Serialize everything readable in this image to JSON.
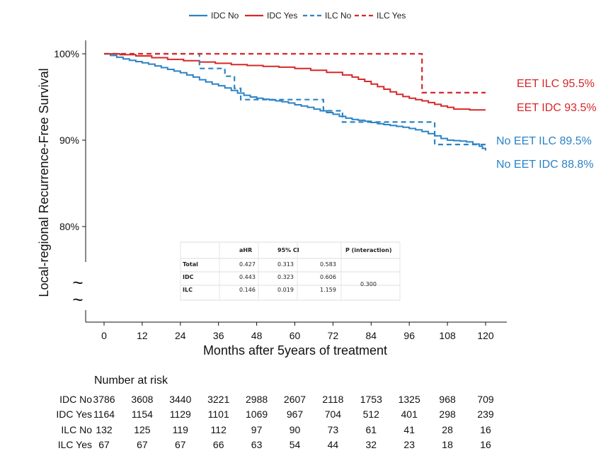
{
  "chart_data": {
    "type": "line",
    "subtype": "kaplan-meier",
    "xlabel": "Months after 5years of treatment",
    "ylabel": "Local-regional Recurrence-Free Survival",
    "x_ticks": [
      0,
      12,
      24,
      36,
      48,
      60,
      72,
      84,
      96,
      108,
      120
    ],
    "y_ticks": [
      {
        "value": 100,
        "label": "100%"
      },
      {
        "value": 90,
        "label": "90%"
      },
      {
        "value": 80,
        "label": "80%"
      }
    ],
    "xlim": [
      -6,
      126
    ],
    "ylim": [
      70,
      101.5
    ],
    "y_axis_break": true,
    "break_symbol": "~",
    "grid": false,
    "legend_position": "top-center",
    "series": [
      {
        "name": "IDC No",
        "color": "#2b83c6",
        "dash": "solid",
        "x": [
          0,
          2,
          4,
          6,
          8,
          10,
          12,
          14,
          16,
          18,
          20,
          22,
          24,
          26,
          28,
          30,
          32,
          34,
          36,
          38,
          40,
          42,
          44,
          46,
          48,
          50,
          52,
          54,
          56,
          58,
          60,
          62,
          64,
          66,
          68,
          70,
          72,
          74,
          76,
          78,
          80,
          82,
          84,
          86,
          88,
          90,
          92,
          94,
          96,
          98,
          100,
          102,
          104,
          106,
          108,
          110,
          112,
          114,
          116,
          118,
          119,
          120
        ],
        "y": [
          100,
          99.8,
          99.6,
          99.4,
          99.25,
          99.1,
          98.95,
          98.8,
          98.6,
          98.4,
          98.2,
          98.0,
          97.8,
          97.55,
          97.3,
          97.0,
          96.75,
          96.5,
          96.3,
          96.05,
          95.75,
          95.45,
          95.2,
          95.0,
          94.85,
          94.75,
          94.65,
          94.55,
          94.45,
          94.3,
          94.1,
          93.95,
          93.8,
          93.6,
          93.4,
          93.2,
          93.0,
          92.75,
          92.55,
          92.4,
          92.3,
          92.2,
          92.05,
          91.9,
          91.8,
          91.7,
          91.6,
          91.5,
          91.35,
          91.2,
          91.0,
          90.75,
          90.5,
          90.2,
          90.0,
          89.95,
          89.9,
          89.8,
          89.55,
          89.3,
          89.05,
          88.8
        ]
      },
      {
        "name": "IDC Yes",
        "color": "#d62828",
        "dash": "solid",
        "x": [
          0,
          5,
          10,
          15,
          20,
          25,
          30,
          35,
          40,
          45,
          50,
          55,
          60,
          65,
          70,
          75,
          78,
          80,
          82,
          84,
          86,
          88,
          90,
          92,
          94,
          96,
          98,
          100,
          102,
          104,
          106,
          108,
          110,
          115,
          120
        ],
        "y": [
          100,
          99.9,
          99.75,
          99.55,
          99.35,
          99.2,
          99.05,
          98.9,
          98.75,
          98.65,
          98.55,
          98.45,
          98.3,
          98.1,
          97.85,
          97.55,
          97.3,
          97.05,
          96.8,
          96.5,
          96.2,
          95.9,
          95.6,
          95.3,
          95.05,
          94.85,
          94.7,
          94.55,
          94.35,
          94.15,
          93.95,
          93.8,
          93.6,
          93.5,
          93.5
        ]
      },
      {
        "name": "ILC No",
        "color": "#2b83c6",
        "dash": "dashed",
        "x": [
          0,
          7,
          30,
          30,
          32,
          38,
          41,
          43,
          46,
          52,
          58,
          64,
          69,
          71,
          75,
          81,
          87,
          93,
          98,
          104,
          109,
          120
        ],
        "y": [
          100,
          100,
          99.8,
          98.3,
          98.3,
          97.4,
          96.0,
          94.7,
          94.7,
          94.7,
          94.7,
          94.7,
          93.4,
          93.4,
          92.1,
          92.1,
          92.1,
          92.1,
          92.1,
          89.5,
          89.5,
          89.5
        ]
      },
      {
        "name": "ILC Yes",
        "color": "#d62828",
        "dash": "dashed",
        "x": [
          0,
          7,
          40,
          70,
          100,
          100,
          110,
          120
        ],
        "y": [
          100,
          100,
          100,
          100,
          100,
          95.5,
          95.5,
          95.5
        ]
      }
    ],
    "end_labels": [
      {
        "text": "EET ILC 95.5%",
        "color": "#d62828",
        "y": 95.5
      },
      {
        "text": "EET IDC 93.5%",
        "color": "#d62828",
        "y": 93.5
      },
      {
        "text": "No EET ILC 89.5%",
        "color": "#2b83c6",
        "y": 89.5
      },
      {
        "text": "No EET IDC 88.8%",
        "color": "#2b83c6",
        "y": 88.8
      }
    ],
    "inset_table": {
      "headers": [
        "",
        "aHR",
        "95% CI",
        "",
        "P (interaction)"
      ],
      "rows": [
        {
          "label": "Total",
          "ahr": "0.427",
          "ci_low": "0.313",
          "ci_high": "0.583",
          "p": ""
        },
        {
          "label": "IDC",
          "ahr": "0.443",
          "ci_low": "0.323",
          "ci_high": "0.606",
          "p": "0.300"
        },
        {
          "label": "ILC",
          "ahr": "0.146",
          "ci_low": "0.019",
          "ci_high": "1.159",
          "p": ""
        }
      ]
    },
    "risk_table": {
      "title": "Number at risk",
      "rows": [
        {
          "label": "IDC No",
          "values": [
            "3786",
            "3608",
            "3440",
            "3221",
            "2988",
            "2607",
            "2118",
            "1753",
            "1325",
            "968",
            "709"
          ]
        },
        {
          "label": "IDC Yes",
          "values": [
            "1164",
            "1154",
            "1129",
            "1101",
            "1069",
            "967",
            "704",
            "512",
            "401",
            "298",
            "239"
          ]
        },
        {
          "label": "ILC No",
          "values": [
            "132",
            "125",
            "119",
            "112",
            "97",
            "90",
            "73",
            "61",
            "41",
            "28",
            "16"
          ]
        },
        {
          "label": "ILC Yes",
          "values": [
            "67",
            "67",
            "67",
            "66",
            "63",
            "54",
            "44",
            "32",
            "23",
            "18",
            "16"
          ]
        }
      ]
    }
  }
}
